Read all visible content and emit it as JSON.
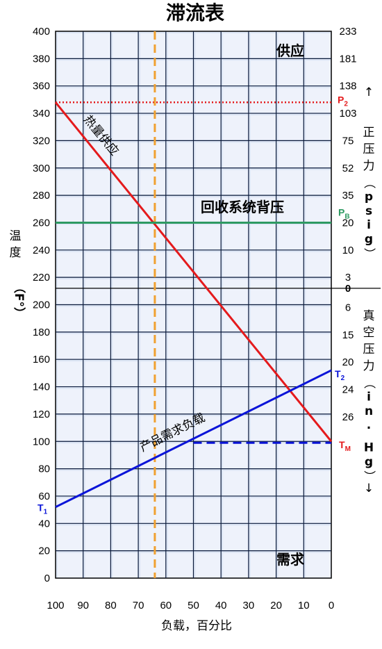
{
  "chart_data": {
    "type": "line",
    "title": "滞流表",
    "xlabel": "负载，百分比",
    "ylabel": "温度（F°）",
    "x_ticks": [
      "100",
      "90",
      "80",
      "70",
      "60",
      "50",
      "40",
      "30",
      "20",
      "10",
      "0"
    ],
    "x_range": [
      100,
      0
    ],
    "y_range": [
      0,
      400
    ],
    "y_ticks": [
      "0",
      "20",
      "40",
      "60",
      "80",
      "100",
      "120",
      "140",
      "160",
      "180",
      "200",
      "220",
      "240",
      "260",
      "280",
      "300",
      "320",
      "340",
      "360",
      "380",
      "400"
    ],
    "right_axis": {
      "pressure_label": "正压力（psig）",
      "pressure_ticks": [
        {
          "label": "233",
          "at_temp": 400
        },
        {
          "label": "181",
          "at_temp": 380
        },
        {
          "label": "138",
          "at_temp": 360
        },
        {
          "label": "103",
          "at_temp": 340
        },
        {
          "label": "75",
          "at_temp": 320
        },
        {
          "label": "52",
          "at_temp": 300
        },
        {
          "label": "35",
          "at_temp": 280
        },
        {
          "label": "20",
          "at_temp": 260
        },
        {
          "label": "10",
          "at_temp": 240
        },
        {
          "label": "3",
          "at_temp": 220
        },
        {
          "label": "0",
          "at_temp": 212
        }
      ],
      "vacuum_label": "真空压力（in. Hg）",
      "vacuum_ticks": [
        {
          "label": "6",
          "at_temp": 200
        },
        {
          "label": "15",
          "at_temp": 180
        },
        {
          "label": "20",
          "at_temp": 160
        },
        {
          "label": "24",
          "at_temp": 140
        },
        {
          "label": "26",
          "at_temp": 120
        }
      ],
      "up_arrow": "↑",
      "down_arrow": "↓"
    },
    "region_labels": {
      "supply": "供应",
      "demand": "需求"
    },
    "series": [
      {
        "name": "热量供应",
        "color": "#e41a1c",
        "style": "solid",
        "points": [
          [
            100,
            348
          ],
          [
            0,
            100
          ]
        ]
      },
      {
        "name": "产品需求负载",
        "color": "#0a14d8",
        "style": "solid",
        "points": [
          [
            100,
            52
          ],
          [
            0,
            152
          ]
        ]
      },
      {
        "name": "回收系统背压",
        "color": "#2e9a62",
        "style": "solid",
        "points": [
          [
            100,
            260
          ],
          [
            0,
            260
          ]
        ]
      }
    ],
    "reference_lines": [
      {
        "name": "P2",
        "color": "#e41a1c",
        "style": "dotted",
        "y": 348
      },
      {
        "name": "TM",
        "color": "#0a14d8",
        "style": "dashed",
        "y": 99,
        "x_from": 50,
        "x_to": 0
      },
      {
        "name": "load",
        "color": "#f0a030",
        "style": "dashed",
        "x": 64
      }
    ],
    "markers": {
      "P2": {
        "label": "P",
        "sub": "2",
        "color": "#e41a1c"
      },
      "PB": {
        "label": "P",
        "sub": "B",
        "color": "#2e9a62"
      },
      "T1": {
        "label": "T",
        "sub": "1",
        "color": "#0a14d8"
      },
      "T2": {
        "label": "T",
        "sub": "2",
        "color": "#0a14d8"
      },
      "TM": {
        "label": "T",
        "sub": "M",
        "color": "#e41a1c"
      }
    },
    "grid": true,
    "grid_color": "#0b1a3a",
    "background_color": "#dde6f5",
    "divider_temp": 212
  }
}
